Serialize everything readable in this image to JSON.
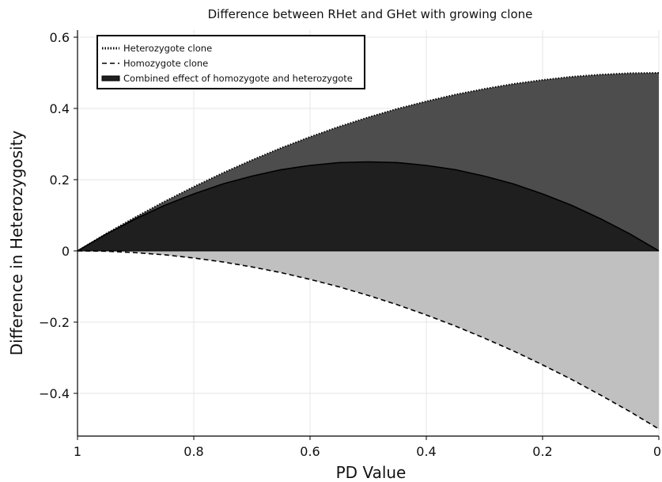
{
  "chart_data": {
    "type": "area",
    "title": "Difference between RHet and GHet with growing clone",
    "xlabel": "PD Value",
    "ylabel": "Difference in Heterozygosity",
    "xlim": [
      1,
      0
    ],
    "ylim": [
      -0.52,
      0.62
    ],
    "x_reversed": true,
    "grid": true,
    "legend_position": "top-left",
    "x_ticks": [
      {
        "value": 1,
        "label": "1"
      },
      {
        "value": 0.8,
        "label": "0.8"
      },
      {
        "value": 0.6,
        "label": "0.6"
      },
      {
        "value": 0.4,
        "label": "0.4"
      },
      {
        "value": 0.2,
        "label": "0.2"
      },
      {
        "value": 0,
        "label": "0"
      }
    ],
    "y_ticks": [
      {
        "value": 0.6,
        "label": "0.6"
      },
      {
        "value": 0.4,
        "label": "0.4"
      },
      {
        "value": 0.2,
        "label": "0.2"
      },
      {
        "value": 0,
        "label": "0"
      },
      {
        "value": -0.2,
        "label": "−0.2"
      },
      {
        "value": -0.4,
        "label": "−0.4"
      }
    ],
    "x": [
      1.0,
      0.95,
      0.9,
      0.85,
      0.8,
      0.75,
      0.7,
      0.65,
      0.6,
      0.55,
      0.5,
      0.45,
      0.4,
      0.35,
      0.3,
      0.25,
      0.2,
      0.15,
      0.1,
      0.05,
      0.0
    ],
    "series": [
      {
        "name": "Heterozygote clone",
        "line_style": "dotted",
        "fill_color": "#4d4d4d",
        "values": [
          0.0,
          0.049,
          0.095,
          0.139,
          0.18,
          0.219,
          0.255,
          0.289,
          0.32,
          0.349,
          0.375,
          0.399,
          0.42,
          0.439,
          0.455,
          0.469,
          0.48,
          0.489,
          0.495,
          0.499,
          0.5
        ]
      },
      {
        "name": "Homozygote clone",
        "line_style": "dashed",
        "fill_color": "#c0c0c0",
        "values": [
          0.0,
          -0.001,
          -0.005,
          -0.011,
          -0.02,
          -0.031,
          -0.045,
          -0.061,
          -0.08,
          -0.101,
          -0.125,
          -0.151,
          -0.18,
          -0.211,
          -0.245,
          -0.281,
          -0.32,
          -0.361,
          -0.405,
          -0.451,
          -0.5
        ]
      },
      {
        "name": "Combined effect of homozygote and heterozygote",
        "line_style": "solid",
        "fill_color": "#1f1f1f",
        "values": [
          0.0,
          0.048,
          0.09,
          0.128,
          0.16,
          0.188,
          0.21,
          0.228,
          0.24,
          0.248,
          0.25,
          0.248,
          0.24,
          0.228,
          0.21,
          0.188,
          0.16,
          0.128,
          0.09,
          0.048,
          0.0
        ]
      }
    ]
  }
}
